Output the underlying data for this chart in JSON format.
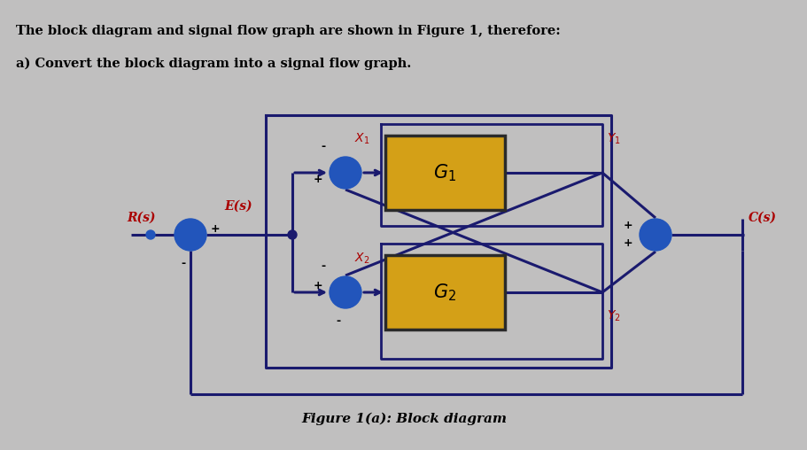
{
  "bg_color": "#c0bfbf",
  "title_line1": "The block diagram and signal flow graph are shown in Figure 1, therefore:",
  "title_line2": "a) Convert the block diagram into a signal flow graph.",
  "figure_caption": "Figure 1(a): Block diagram",
  "box_color": "#D4A017",
  "box_border": "#2a2a2a",
  "line_color": "#1a1a6e",
  "sumjunc_color": "#2255bb",
  "text_color": "#aa0000",
  "title_color": "#000000",
  "sign_color": "#000000"
}
